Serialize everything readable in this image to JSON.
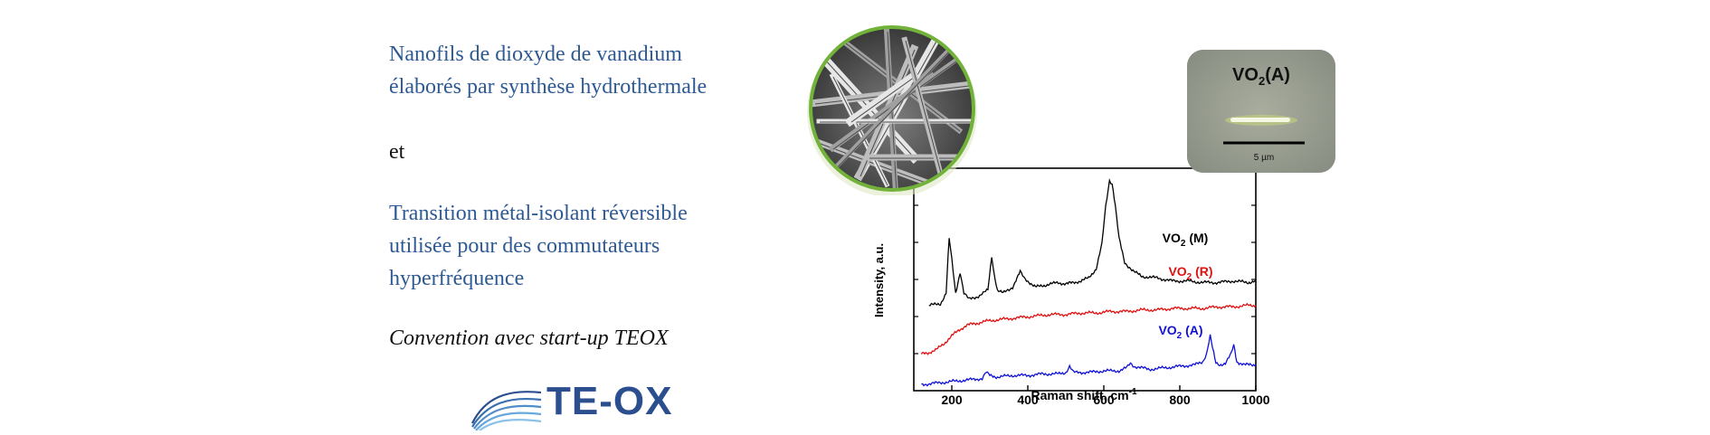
{
  "left_text": {
    "heading_line1": "Nanofils de dioxyde de vanadium",
    "heading_line2": "élaborés par synthèse hydrothermale",
    "connector": "et",
    "body_line1": "Transition métal-isolant réversible",
    "body_line2": "utilisée pour des commutateurs",
    "body_line3": "hyperfréquence",
    "convention": "Convention avec start-up TEOX"
  },
  "logo": {
    "text": "TE-OX",
    "color": "#2b4f8e"
  },
  "inset": {
    "title_main": "VO",
    "title_sub": "2",
    "title_suffix": "(A)",
    "scale_label": "5 µm"
  },
  "chart_data": {
    "type": "line",
    "xlabel": "Raman shift, cm",
    "xlabel_sup": "-1",
    "ylabel": "Intensity, a.u.",
    "xlim": [
      100,
      1000
    ],
    "xticks": [
      200,
      400,
      600,
      800,
      1000
    ],
    "y_ticks_labeled": false,
    "series": [
      {
        "name": "VO2 (M)",
        "label_main": "VO",
        "label_sub": "2",
        "label_suffix": " (M)",
        "color": "#000000",
        "x": [
          140,
          170,
          185,
          193,
          200,
          210,
          222,
          232,
          245,
          270,
          295,
          305,
          312,
          320,
          335,
          360,
          380,
          390,
          400,
          420,
          440,
          460,
          480,
          500,
          520,
          540,
          560,
          580,
          595,
          605,
          615,
          622,
          630,
          640,
          655,
          680,
          700,
          740,
          780,
          820,
          860,
          900,
          940,
          980,
          1000
        ],
        "y": [
          0.3,
          0.31,
          0.38,
          0.74,
          0.6,
          0.38,
          0.52,
          0.38,
          0.34,
          0.36,
          0.4,
          0.62,
          0.5,
          0.4,
          0.38,
          0.42,
          0.52,
          0.48,
          0.46,
          0.42,
          0.43,
          0.44,
          0.45,
          0.44,
          0.45,
          0.46,
          0.48,
          0.54,
          0.7,
          0.95,
          1.12,
          1.1,
          0.96,
          0.74,
          0.58,
          0.52,
          0.49,
          0.48,
          0.46,
          0.46,
          0.45,
          0.45,
          0.46,
          0.45,
          0.46
        ]
      },
      {
        "name": "VO2 (R)",
        "label_main": "VO",
        "label_sub": "2",
        "label_suffix": " (R)",
        "color": "#e01010",
        "x": [
          120,
          140,
          160,
          180,
          200,
          220,
          240,
          260,
          280,
          300,
          340,
          380,
          420,
          460,
          500,
          540,
          580,
          620,
          660,
          700,
          740,
          780,
          820,
          860,
          900,
          940,
          980,
          1000
        ],
        "y": [
          -0.02,
          -0.01,
          0.01,
          0.05,
          0.1,
          0.14,
          0.17,
          0.18,
          0.19,
          0.2,
          0.21,
          0.22,
          0.23,
          0.24,
          0.24,
          0.25,
          0.25,
          0.26,
          0.26,
          0.27,
          0.27,
          0.28,
          0.28,
          0.28,
          0.29,
          0.29,
          0.3,
          0.3
        ]
      },
      {
        "name": "VO2 (A)",
        "label_main": "VO",
        "label_sub": "2",
        "label_suffix": " (A)",
        "color": "#1010d8",
        "x": [
          120,
          160,
          200,
          240,
          280,
          290,
          300,
          320,
          360,
          400,
          440,
          480,
          500,
          510,
          520,
          560,
          600,
          640,
          660,
          670,
          680,
          720,
          760,
          800,
          840,
          860,
          870,
          880,
          886,
          895,
          905,
          920,
          935,
          942,
          950,
          970,
          1000
        ],
        "y": [
          -0.22,
          -0.21,
          -0.2,
          -0.19,
          -0.18,
          -0.14,
          -0.16,
          -0.17,
          -0.16,
          -0.16,
          -0.15,
          -0.15,
          -0.14,
          -0.1,
          -0.14,
          -0.14,
          -0.13,
          -0.13,
          -0.11,
          -0.08,
          -0.1,
          -0.12,
          -0.11,
          -0.1,
          -0.09,
          -0.07,
          -0.02,
          0.1,
          0.02,
          -0.08,
          -0.09,
          -0.08,
          -0.02,
          0.04,
          -0.07,
          -0.09,
          -0.09
        ]
      }
    ]
  }
}
